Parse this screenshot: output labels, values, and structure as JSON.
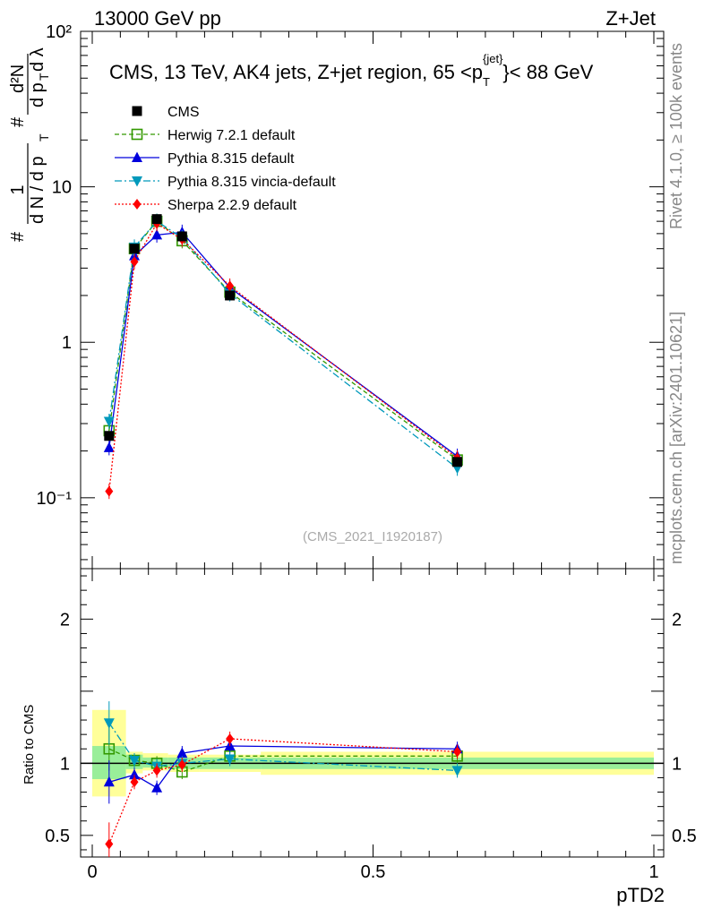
{
  "header": {
    "beam": "13000 GeV pp",
    "process": "Z+Jet"
  },
  "side_labels": {
    "rivet": "Rivet 4.1.0, ≥ 100k events",
    "mcplots": "mcplots.cern.ch [arXiv:2401.10621]"
  },
  "watermark": "(CMS_2021_I1920187)",
  "chart_data": {
    "type": "line",
    "title": "CMS, 13 TeV, AK4 jets, Z+jet region, 65 <p",
    "title_sup": "{jet}",
    "title_sub": "T",
    "title_tail": "}< 88 GeV",
    "xlabel": "pTD2",
    "ylabel": "1/(dN/dpT) d²N/(dpT dλ)",
    "ratio_ylabel": "Ratio to CMS",
    "xlim": [
      0,
      1
    ],
    "ylim": [
      0.035,
      100
    ],
    "yscale": "log",
    "ratio_ylim": [
      0.35,
      2.35
    ],
    "x_ticks": [
      "0",
      "0.5",
      "1"
    ],
    "y_ticks": [
      "10⁻¹",
      "1",
      "10",
      "10²"
    ],
    "ratio_ticks": [
      "0.5",
      "1",
      "2"
    ],
    "x": [
      0.03,
      0.075,
      0.115,
      0.16,
      0.245,
      0.65
    ],
    "bins": [
      [
        0.0,
        0.06
      ],
      [
        0.06,
        0.09
      ],
      [
        0.09,
        0.135
      ],
      [
        0.135,
        0.19
      ],
      [
        0.19,
        0.3
      ],
      [
        0.3,
        1.0
      ]
    ],
    "legend": [
      {
        "name": "CMS",
        "color": "#000000",
        "marker": "square-filled",
        "dash": ""
      },
      {
        "name": "Herwig 7.2.1 default",
        "color": "#339900",
        "marker": "square-open",
        "dash": "5,3"
      },
      {
        "name": "Pythia 8.315 default",
        "color": "#0000dd",
        "marker": "triangle-up",
        "dash": ""
      },
      {
        "name": "Pythia 8.315 vincia-default",
        "color": "#0099bb",
        "marker": "triangle-down",
        "dash": "8,3,2,3"
      },
      {
        "name": "Sherpa 2.2.9 default",
        "color": "#ff0000",
        "marker": "diamond",
        "dash": "2,2"
      }
    ],
    "series": [
      {
        "name": "CMS",
        "values": [
          0.25,
          4.0,
          6.2,
          4.8,
          2.0,
          0.17
        ]
      },
      {
        "name": "Herwig 7.2.1 default",
        "values": [
          0.27,
          4.0,
          6.0,
          4.5,
          2.1,
          0.175
        ]
      },
      {
        "name": "Pythia 8.315 default",
        "values": [
          0.21,
          3.6,
          4.9,
          5.1,
          2.25,
          0.185
        ]
      },
      {
        "name": "Pythia 8.315 vincia-default",
        "values": [
          0.31,
          4.1,
          6.0,
          4.7,
          2.05,
          0.155
        ]
      },
      {
        "name": "Sherpa 2.2.9 default",
        "values": [
          0.11,
          3.3,
          5.8,
          4.6,
          2.3,
          0.18
        ]
      }
    ],
    "ratio_series": [
      {
        "name": "Herwig 7.2.1 default",
        "values": [
          1.1,
          1.02,
          1.0,
          0.94,
          1.05,
          1.05
        ]
      },
      {
        "name": "Pythia 8.315 default",
        "values": [
          0.87,
          0.92,
          0.83,
          1.07,
          1.12,
          1.1
        ]
      },
      {
        "name": "Pythia 8.315 vincia-default",
        "values": [
          1.28,
          1.02,
          0.98,
          1.0,
          1.03,
          0.95
        ]
      },
      {
        "name": "Sherpa 2.2.9 default",
        "values": [
          0.44,
          0.87,
          0.95,
          0.99,
          1.17,
          1.08
        ]
      }
    ],
    "band_inner": [
      [
        0.89,
        1.12
      ],
      [
        0.96,
        1.06
      ],
      [
        0.97,
        1.04
      ],
      [
        0.96,
        1.04
      ],
      [
        0.96,
        1.04
      ],
      [
        0.96,
        1.04
      ]
    ],
    "band_outer": [
      [
        0.77,
        1.37
      ],
      [
        0.93,
        1.08
      ],
      [
        0.95,
        1.07
      ],
      [
        0.94,
        1.06
      ],
      [
        0.94,
        1.06
      ],
      [
        0.92,
        1.08
      ]
    ]
  }
}
